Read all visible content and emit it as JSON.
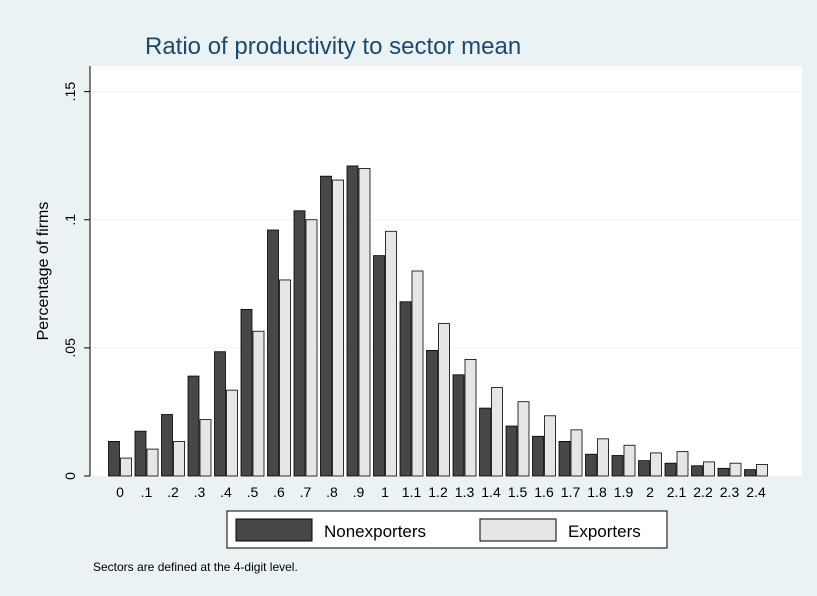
{
  "chart_data": {
    "type": "bar",
    "title": "Ratio of productivity to sector mean",
    "ylabel": "Percentage of firms",
    "xlabel": "",
    "ylim": [
      0,
      0.16
    ],
    "yticks": [
      0,
      0.05,
      0.1,
      0.15
    ],
    "ytick_labels": [
      "0",
      ".05",
      ".1",
      ".15"
    ],
    "categories": [
      "0",
      ".1",
      ".2",
      ".3",
      ".4",
      ".5",
      ".6",
      ".7",
      ".8",
      ".9",
      "1",
      "1.1",
      "1.2",
      "1.3",
      "1.4",
      "1.5",
      "1.6",
      "1.7",
      "1.8",
      "1.9",
      "2",
      "2.1",
      "2.2",
      "2.3",
      "2.4"
    ],
    "series": [
      {
        "name": "Nonexporters",
        "color": "#474747",
        "values": [
          0.0135,
          0.0175,
          0.024,
          0.039,
          0.0485,
          0.065,
          0.096,
          0.1035,
          0.117,
          0.121,
          0.086,
          0.068,
          0.049,
          0.0395,
          0.0265,
          0.0195,
          0.0155,
          0.0135,
          0.0085,
          0.008,
          0.006,
          0.005,
          0.004,
          0.003,
          0.0025
        ]
      },
      {
        "name": "Exporters",
        "color": "#e6e6e6",
        "values": [
          0.007,
          0.0105,
          0.0135,
          0.022,
          0.0335,
          0.0565,
          0.0765,
          0.1,
          0.1155,
          0.12,
          0.0955,
          0.08,
          0.0595,
          0.0455,
          0.0345,
          0.029,
          0.0235,
          0.018,
          0.0145,
          0.012,
          0.009,
          0.0095,
          0.0055,
          0.005,
          0.0045
        ]
      }
    ],
    "grid": true,
    "legend_position": "bottom",
    "note": "Sectors are defined at the 4-digit level."
  },
  "colors": {
    "background": "#eaf2f3",
    "plot_background": "#ffffff",
    "title": "#1a4a72",
    "bar_outline": "#000000"
  }
}
